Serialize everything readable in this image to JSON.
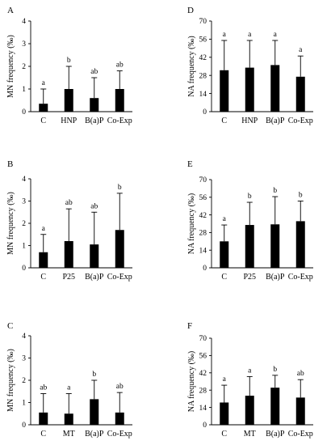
{
  "chart_data": [
    {
      "panel": "A",
      "type": "bar",
      "ylabel": "MN frequency (‰)",
      "ylim": [
        0,
        4
      ],
      "yticks": [
        0,
        1,
        2,
        3,
        4
      ],
      "categories": [
        "C",
        "HNP",
        "B(a)P",
        "Co-Exp"
      ],
      "values": [
        0.35,
        1.0,
        0.6,
        1.0
      ],
      "errors": [
        0.65,
        1.0,
        0.9,
        0.8
      ],
      "significance": [
        "a",
        "b",
        "ab",
        "ab"
      ]
    },
    {
      "panel": "D",
      "type": "bar",
      "ylabel": "NA frequency (‰)",
      "ylim": [
        0,
        70
      ],
      "yticks": [
        0,
        14,
        28,
        42,
        56,
        70
      ],
      "categories": [
        "C",
        "HNP",
        "B(a)P",
        "Co-Exp"
      ],
      "values": [
        32,
        34,
        36,
        27
      ],
      "errors": [
        23,
        21,
        19,
        16
      ],
      "significance": [
        "a",
        "a",
        "a",
        "a"
      ]
    },
    {
      "panel": "B",
      "type": "bar",
      "ylabel": "MN frequency (‰)",
      "ylim": [
        0,
        4
      ],
      "yticks": [
        0,
        1,
        2,
        3,
        4
      ],
      "categories": [
        "C",
        "P25",
        "B(a)P",
        "Co-Exp"
      ],
      "values": [
        0.7,
        1.2,
        1.05,
        1.7
      ],
      "errors": [
        0.8,
        1.45,
        1.45,
        1.65
      ],
      "significance": [
        "a",
        "ab",
        "ab",
        "b"
      ]
    },
    {
      "panel": "E",
      "type": "bar",
      "ylabel": "NA frequency (‰)",
      "ylim": [
        0,
        70
      ],
      "yticks": [
        0,
        14,
        28,
        42,
        56,
        70
      ],
      "categories": [
        "C",
        "P25",
        "B(a)P",
        "Co-Exp"
      ],
      "values": [
        21,
        34,
        34.5,
        37
      ],
      "errors": [
        13,
        18,
        22,
        16
      ],
      "significance": [
        "a",
        "b",
        "b",
        "b"
      ]
    },
    {
      "panel": "C",
      "type": "bar",
      "ylabel": "MN frequency (‰)",
      "ylim": [
        0,
        4
      ],
      "yticks": [
        0,
        1,
        2,
        3,
        4
      ],
      "categories": [
        "C",
        "MT",
        "B(a)P",
        "Co-Exp"
      ],
      "values": [
        0.55,
        0.5,
        1.15,
        0.55
      ],
      "errors": [
        0.85,
        0.9,
        0.85,
        0.9
      ],
      "significance": [
        "ab",
        "a",
        "b",
        "ab"
      ]
    },
    {
      "panel": "F",
      "type": "bar",
      "ylabel": "NA frequency (‰)",
      "ylim": [
        0,
        70
      ],
      "yticks": [
        0,
        14,
        28,
        42,
        56,
        70
      ],
      "categories": [
        "C",
        "MT",
        "B(a)P",
        "Co-Exp"
      ],
      "values": [
        18,
        23.5,
        30,
        22
      ],
      "errors": [
        14,
        15.5,
        10,
        14.5
      ],
      "significance": [
        "a",
        "a",
        "b",
        "ab"
      ]
    }
  ]
}
